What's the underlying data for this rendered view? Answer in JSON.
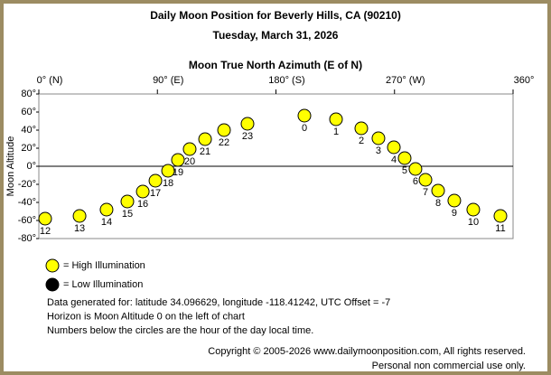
{
  "chart_data": {
    "type": "scatter",
    "title": "Daily Moon Position for Beverly Hills, CA (90210)",
    "subtitle": "Tuesday, March 31, 2026",
    "x_label": "Moon True North Azimuth (E of N)",
    "y_label": "Moon Altitude",
    "xlim": [
      0,
      360
    ],
    "xticks": [
      {
        "value": 0,
        "label": "0° (N)"
      },
      {
        "value": 90,
        "label": "90° (E)"
      },
      {
        "value": 180,
        "label": "180° (S)"
      },
      {
        "value": 270,
        "label": "270° (W)"
      },
      {
        "value": 360,
        "label": "360°"
      }
    ],
    "ylim": [
      -80,
      80
    ],
    "yticks": [
      {
        "value": 80,
        "label": "80°"
      },
      {
        "value": 60,
        "label": "60°"
      },
      {
        "value": 40,
        "label": "40°"
      },
      {
        "value": 20,
        "label": "20°"
      },
      {
        "value": 0,
        "label": "0°"
      },
      {
        "value": -20,
        "label": "-20°"
      },
      {
        "value": -40,
        "label": "-40°"
      },
      {
        "value": -60,
        "label": "-60°"
      },
      {
        "value": -80,
        "label": "-80°"
      }
    ],
    "series": [
      {
        "name": "= High Illumination",
        "color": "#ffff00",
        "x": [
          4.8,
          30.9,
          51.4,
          67.2,
          78.9,
          88.5,
          98.1,
          105.6,
          114.5,
          126.2,
          140.6,
          158.4,
          201.6,
          225.6,
          244.8,
          257.8,
          269.5,
          277.7,
          285.9,
          293.5,
          303.1,
          315.4,
          329.8,
          350.4
        ],
        "values": [
          -58,
          -55,
          -48,
          -39,
          -28,
          -16,
          -5,
          7,
          19,
          30,
          40,
          47,
          56,
          52,
          42,
          31,
          21,
          9,
          -3,
          -15,
          -27,
          -38,
          -48,
          -55
        ],
        "point_labels": [
          "12",
          "13",
          "14",
          "15",
          "16",
          "17",
          "18",
          "19",
          "20",
          "21",
          "22",
          "23",
          "0",
          "1",
          "2",
          "3",
          "4",
          "5",
          "6",
          "7",
          "8",
          "9",
          "10",
          "11"
        ]
      },
      {
        "name": "= Low Illumination",
        "color": "#000000",
        "x": [],
        "values": [],
        "point_labels": []
      }
    ],
    "notes": [
      "Data generated for: latitude 34.096629, longitude -118.41242, UTC Offset = -7",
      "Horizon is Moon Altitude 0 on the left of chart",
      "Numbers below the circles are the hour of the day local time."
    ],
    "copyright": [
      "Copyright © 2005-2026 www.dailymoonposition.com, All rights reserved.",
      "Personal non commercial use only."
    ]
  }
}
